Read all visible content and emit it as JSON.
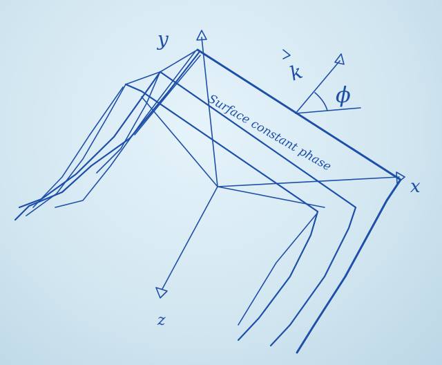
{
  "diagram": {
    "axes": {
      "x_label": "x",
      "y_label": "y",
      "z_label": "z"
    },
    "wave_vector_label": "k",
    "angle_label": "ϕ",
    "surface_label": "Surface constant phase",
    "colors": {
      "ink": "#1e4fa8",
      "paper": "#d4e8f2"
    }
  }
}
